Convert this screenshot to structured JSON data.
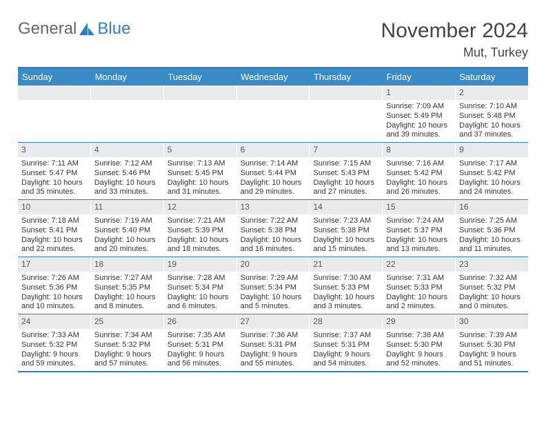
{
  "brand": {
    "part1": "General",
    "part2": "Blue"
  },
  "title": "November 2024",
  "location": "Mut, Turkey",
  "colors": {
    "accent": "#2f7fc2",
    "header_bg": "#3a8ac6",
    "daynum_bg": "#e9eaec",
    "text": "#333333"
  },
  "day_headers": [
    "Sunday",
    "Monday",
    "Tuesday",
    "Wednesday",
    "Thursday",
    "Friday",
    "Saturday"
  ],
  "weeks": [
    [
      {
        "n": "",
        "sr": "",
        "ss": "",
        "dl": ""
      },
      {
        "n": "",
        "sr": "",
        "ss": "",
        "dl": ""
      },
      {
        "n": "",
        "sr": "",
        "ss": "",
        "dl": ""
      },
      {
        "n": "",
        "sr": "",
        "ss": "",
        "dl": ""
      },
      {
        "n": "",
        "sr": "",
        "ss": "",
        "dl": ""
      },
      {
        "n": "1",
        "sr": "Sunrise: 7:09 AM",
        "ss": "Sunset: 5:49 PM",
        "dl": "Daylight: 10 hours and 39 minutes."
      },
      {
        "n": "2",
        "sr": "Sunrise: 7:10 AM",
        "ss": "Sunset: 5:48 PM",
        "dl": "Daylight: 10 hours and 37 minutes."
      }
    ],
    [
      {
        "n": "3",
        "sr": "Sunrise: 7:11 AM",
        "ss": "Sunset: 5:47 PM",
        "dl": "Daylight: 10 hours and 35 minutes."
      },
      {
        "n": "4",
        "sr": "Sunrise: 7:12 AM",
        "ss": "Sunset: 5:46 PM",
        "dl": "Daylight: 10 hours and 33 minutes."
      },
      {
        "n": "5",
        "sr": "Sunrise: 7:13 AM",
        "ss": "Sunset: 5:45 PM",
        "dl": "Daylight: 10 hours and 31 minutes."
      },
      {
        "n": "6",
        "sr": "Sunrise: 7:14 AM",
        "ss": "Sunset: 5:44 PM",
        "dl": "Daylight: 10 hours and 29 minutes."
      },
      {
        "n": "7",
        "sr": "Sunrise: 7:15 AM",
        "ss": "Sunset: 5:43 PM",
        "dl": "Daylight: 10 hours and 27 minutes."
      },
      {
        "n": "8",
        "sr": "Sunrise: 7:16 AM",
        "ss": "Sunset: 5:42 PM",
        "dl": "Daylight: 10 hours and 26 minutes."
      },
      {
        "n": "9",
        "sr": "Sunrise: 7:17 AM",
        "ss": "Sunset: 5:42 PM",
        "dl": "Daylight: 10 hours and 24 minutes."
      }
    ],
    [
      {
        "n": "10",
        "sr": "Sunrise: 7:18 AM",
        "ss": "Sunset: 5:41 PM",
        "dl": "Daylight: 10 hours and 22 minutes."
      },
      {
        "n": "11",
        "sr": "Sunrise: 7:19 AM",
        "ss": "Sunset: 5:40 PM",
        "dl": "Daylight: 10 hours and 20 minutes."
      },
      {
        "n": "12",
        "sr": "Sunrise: 7:21 AM",
        "ss": "Sunset: 5:39 PM",
        "dl": "Daylight: 10 hours and 18 minutes."
      },
      {
        "n": "13",
        "sr": "Sunrise: 7:22 AM",
        "ss": "Sunset: 5:38 PM",
        "dl": "Daylight: 10 hours and 16 minutes."
      },
      {
        "n": "14",
        "sr": "Sunrise: 7:23 AM",
        "ss": "Sunset: 5:38 PM",
        "dl": "Daylight: 10 hours and 15 minutes."
      },
      {
        "n": "15",
        "sr": "Sunrise: 7:24 AM",
        "ss": "Sunset: 5:37 PM",
        "dl": "Daylight: 10 hours and 13 minutes."
      },
      {
        "n": "16",
        "sr": "Sunrise: 7:25 AM",
        "ss": "Sunset: 5:36 PM",
        "dl": "Daylight: 10 hours and 11 minutes."
      }
    ],
    [
      {
        "n": "17",
        "sr": "Sunrise: 7:26 AM",
        "ss": "Sunset: 5:36 PM",
        "dl": "Daylight: 10 hours and 10 minutes."
      },
      {
        "n": "18",
        "sr": "Sunrise: 7:27 AM",
        "ss": "Sunset: 5:35 PM",
        "dl": "Daylight: 10 hours and 8 minutes."
      },
      {
        "n": "19",
        "sr": "Sunrise: 7:28 AM",
        "ss": "Sunset: 5:34 PM",
        "dl": "Daylight: 10 hours and 6 minutes."
      },
      {
        "n": "20",
        "sr": "Sunrise: 7:29 AM",
        "ss": "Sunset: 5:34 PM",
        "dl": "Daylight: 10 hours and 5 minutes."
      },
      {
        "n": "21",
        "sr": "Sunrise: 7:30 AM",
        "ss": "Sunset: 5:33 PM",
        "dl": "Daylight: 10 hours and 3 minutes."
      },
      {
        "n": "22",
        "sr": "Sunrise: 7:31 AM",
        "ss": "Sunset: 5:33 PM",
        "dl": "Daylight: 10 hours and 2 minutes."
      },
      {
        "n": "23",
        "sr": "Sunrise: 7:32 AM",
        "ss": "Sunset: 5:32 PM",
        "dl": "Daylight: 10 hours and 0 minutes."
      }
    ],
    [
      {
        "n": "24",
        "sr": "Sunrise: 7:33 AM",
        "ss": "Sunset: 5:32 PM",
        "dl": "Daylight: 9 hours and 59 minutes."
      },
      {
        "n": "25",
        "sr": "Sunrise: 7:34 AM",
        "ss": "Sunset: 5:32 PM",
        "dl": "Daylight: 9 hours and 57 minutes."
      },
      {
        "n": "26",
        "sr": "Sunrise: 7:35 AM",
        "ss": "Sunset: 5:31 PM",
        "dl": "Daylight: 9 hours and 56 minutes."
      },
      {
        "n": "27",
        "sr": "Sunrise: 7:36 AM",
        "ss": "Sunset: 5:31 PM",
        "dl": "Daylight: 9 hours and 55 minutes."
      },
      {
        "n": "28",
        "sr": "Sunrise: 7:37 AM",
        "ss": "Sunset: 5:31 PM",
        "dl": "Daylight: 9 hours and 54 minutes."
      },
      {
        "n": "29",
        "sr": "Sunrise: 7:38 AM",
        "ss": "Sunset: 5:30 PM",
        "dl": "Daylight: 9 hours and 52 minutes."
      },
      {
        "n": "30",
        "sr": "Sunrise: 7:39 AM",
        "ss": "Sunset: 5:30 PM",
        "dl": "Daylight: 9 hours and 51 minutes."
      }
    ]
  ]
}
